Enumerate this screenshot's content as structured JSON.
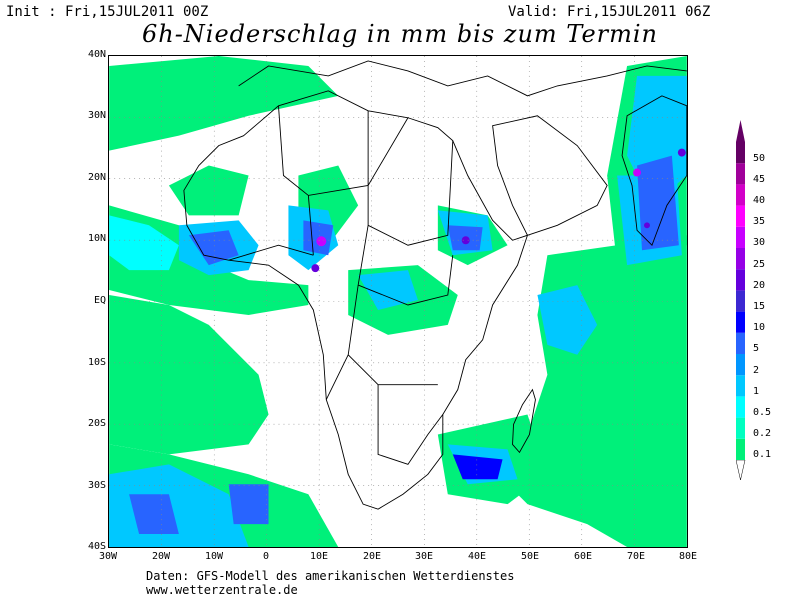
{
  "header": {
    "init": "Init : Fri,15JUL2011 00Z",
    "valid": "Valid: Fri,15JUL2011 06Z",
    "title": "6h-Niederschlag in mm bis zum Termin"
  },
  "axes": {
    "lat_labels": [
      "40N",
      "30N",
      "20N",
      "10N",
      "EQ",
      "10S",
      "20S",
      "30S",
      "40S"
    ],
    "lon_labels": [
      "30W",
      "20W",
      "10W",
      "0",
      "10E",
      "20E",
      "30E",
      "40E",
      "50E",
      "60E",
      "70E",
      "80E"
    ]
  },
  "legend": {
    "levels": [
      "0.1",
      "0.2",
      "0.5",
      "1",
      "2",
      "5",
      "10",
      "15",
      "20",
      "25",
      "30",
      "35",
      "40",
      "45",
      "50"
    ],
    "colors": [
      "#00f07a",
      "#00ffc0",
      "#00ffff",
      "#00c8ff",
      "#0096ff",
      "#2864ff",
      "#0000ff",
      "#3c28d2",
      "#6400dc",
      "#9600e6",
      "#c800ff",
      "#ff00ff",
      "#d200c8",
      "#a0009a",
      "#640064"
    ]
  },
  "footer": {
    "line1": "Daten: GFS-Modell des amerikanischen Wetterdienstes",
    "line2": "www.wetterzentrale.de"
  },
  "colors": {
    "coast": "#000000",
    "grid": "#888888"
  }
}
